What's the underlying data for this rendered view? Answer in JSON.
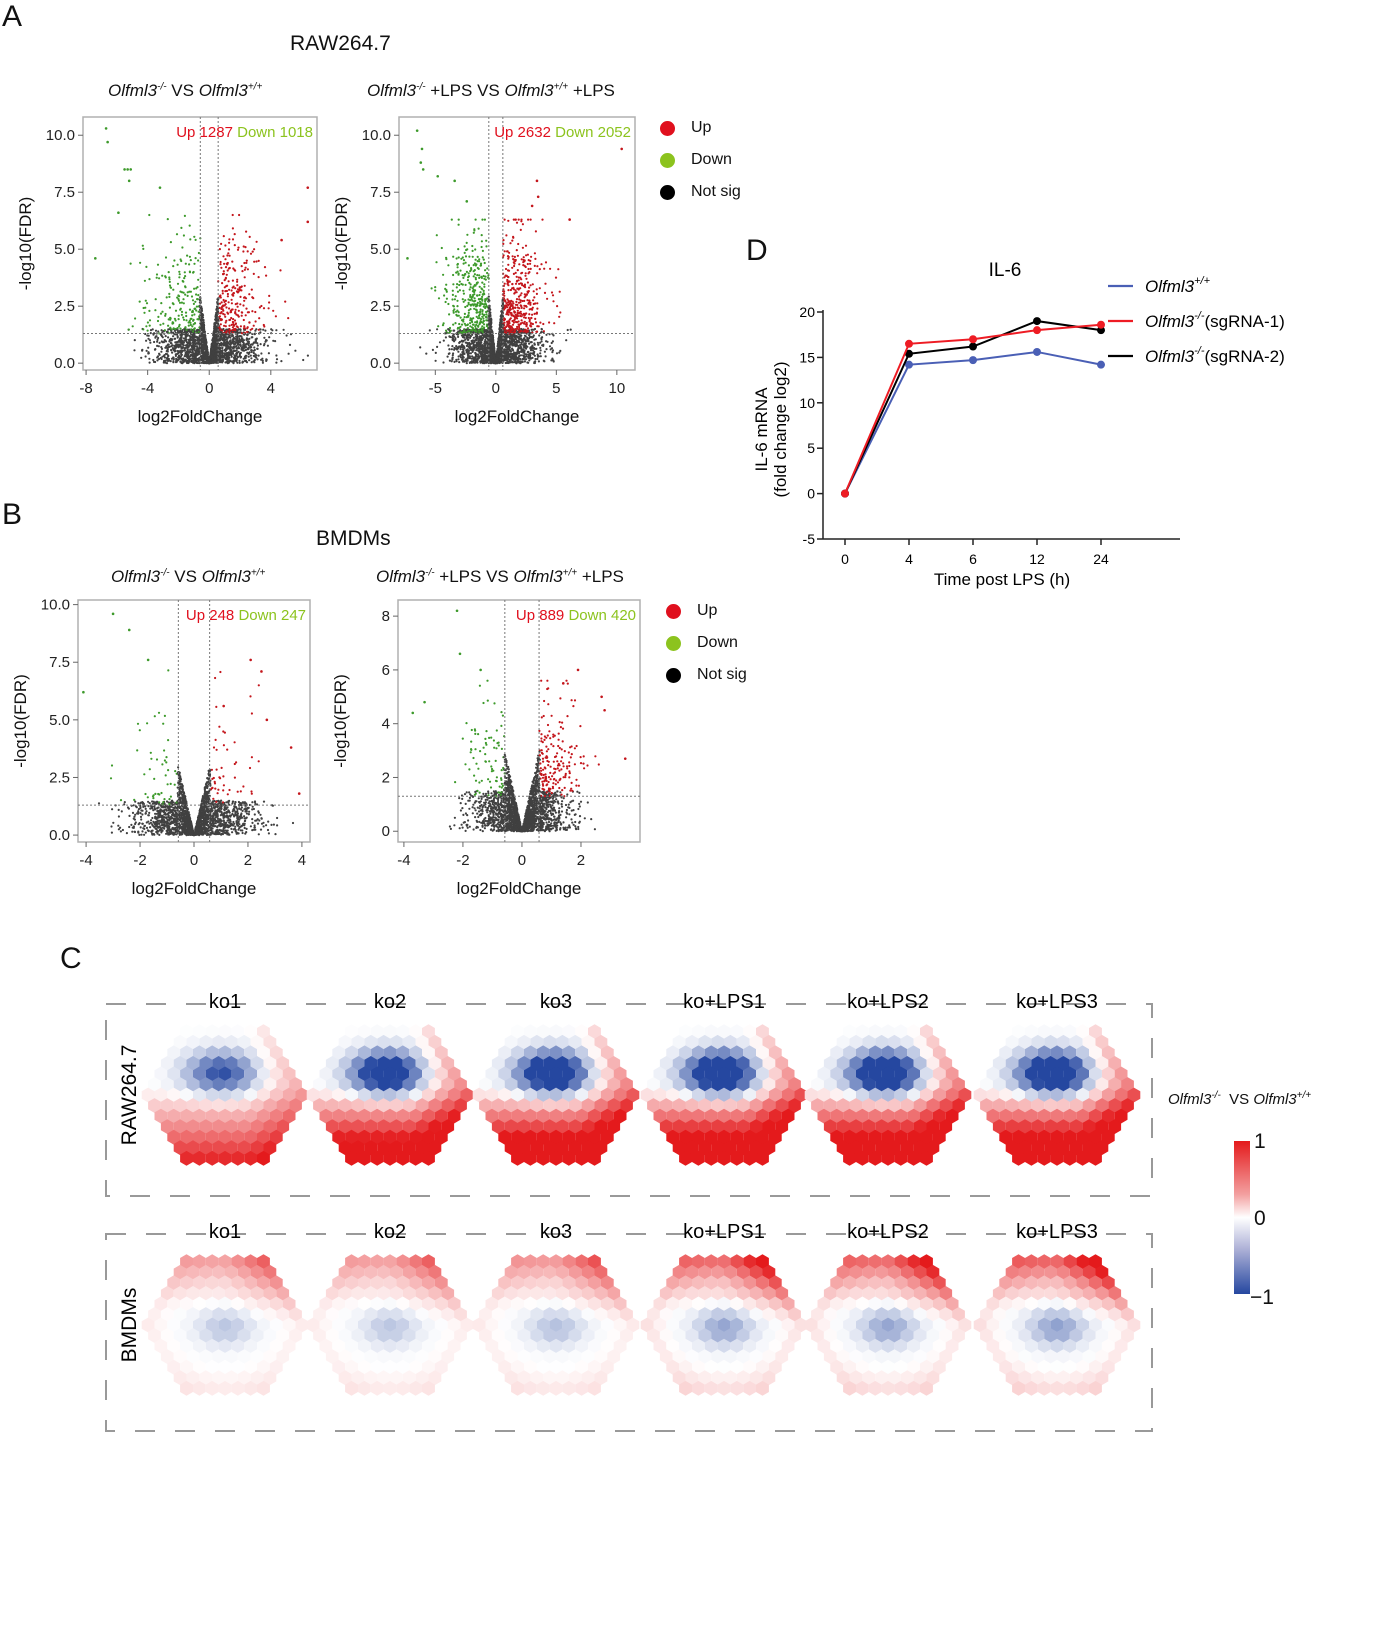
{
  "panels": {
    "A": {
      "letter": "A",
      "section_title": "RAW264.7"
    },
    "B": {
      "letter": "B",
      "section_title": "BMDMs"
    },
    "C": {
      "letter": "C"
    },
    "D": {
      "letter": "D"
    }
  },
  "volcano_legend": {
    "items": [
      {
        "label": "Up",
        "color": "#e0101e"
      },
      {
        "label": "Down",
        "color": "#8cc31e"
      },
      {
        "label": "Not sig",
        "color": "#000000"
      }
    ]
  },
  "chart_data": [
    {
      "id": "A-left",
      "type": "scatter",
      "subtype": "volcano",
      "title_parts": {
        "gene1": "Olfml3",
        "sup1": "-/-",
        "mid": " VS ",
        "gene2": "Olfml3",
        "sup2": "+/+",
        "suffix": ""
      },
      "annotation_up": "Up 1287",
      "annotation_down": "Down 1018",
      "up_count": 1287,
      "down_count": 1018,
      "xlabel": "log2FoldChange",
      "ylabel": "-log10(FDR)",
      "xlim": [
        -8.2,
        7
      ],
      "ylim": [
        -0.3,
        10.8
      ],
      "xticks": [
        -8,
        -4,
        0,
        4
      ],
      "xtick_labels": [
        "-8",
        "-4",
        "0",
        "4"
      ],
      "yticks": [
        0,
        2.5,
        5,
        7.5,
        10
      ],
      "ytick_labels": [
        "0.0",
        "2.5",
        "5.0",
        "7.5",
        "10.0"
      ],
      "fc_threshold": 0.58,
      "fdr_threshold": 1.3,
      "spread": {
        "left": 5.5,
        "right": 4.8,
        "ymax_sig": 6.5
      },
      "outliers": [
        [
          -6.7,
          10.3
        ],
        [
          -6.6,
          9.7
        ],
        [
          -5.5,
          8.5
        ],
        [
          -5.3,
          8.5
        ],
        [
          -5.1,
          8.5
        ],
        [
          -5.2,
          8.0
        ],
        [
          -3.2,
          7.7
        ],
        [
          -7.4,
          4.6
        ],
        [
          -5.9,
          6.6
        ],
        [
          6.4,
          7.7
        ],
        [
          6.4,
          6.2
        ],
        [
          4.7,
          5.4
        ]
      ],
      "seed": 11
    },
    {
      "id": "A-right",
      "type": "scatter",
      "subtype": "volcano",
      "title_parts": {
        "gene1": "Olfml3",
        "sup1": "-/-",
        "mid": " +LPS VS ",
        "gene2": "Olfml3",
        "sup2": "+/+",
        "suffix": " +LPS"
      },
      "annotation_up": "Up 2632",
      "annotation_down": "Down 2052",
      "up_count": 2632,
      "down_count": 2052,
      "xlabel": "log2FoldChange",
      "ylabel": "-log10(FDR)",
      "xlim": [
        -8,
        11.5
      ],
      "ylim": [
        -0.3,
        10.8
      ],
      "xticks": [
        -5,
        0,
        5,
        10
      ],
      "xtick_labels": [
        "-5",
        "0",
        "5",
        "10"
      ],
      "yticks": [
        0,
        2.5,
        5,
        7.5,
        10
      ],
      "ytick_labels": [
        "0.0",
        "2.5",
        "5.0",
        "7.5",
        "10.0"
      ],
      "fc_threshold": 0.58,
      "fdr_threshold": 1.3,
      "spread": {
        "left": 5.5,
        "right": 5.5,
        "ymax_sig": 6.3
      },
      "outliers": [
        [
          -6.5,
          10.2
        ],
        [
          -6.1,
          9.4
        ],
        [
          -6.2,
          8.8
        ],
        [
          -6.0,
          8.5
        ],
        [
          -4.8,
          8.2
        ],
        [
          -3.4,
          8.0
        ],
        [
          -2.4,
          7.1
        ],
        [
          -7.3,
          4.6
        ],
        [
          10.4,
          9.4
        ],
        [
          3.4,
          8.0
        ],
        [
          3.5,
          7.3
        ],
        [
          6.1,
          6.3
        ],
        [
          3.0,
          6.9
        ]
      ],
      "seed": 23
    },
    {
      "id": "B-left",
      "type": "scatter",
      "subtype": "volcano",
      "title_parts": {
        "gene1": "Olfml3",
        "sup1": "-/-",
        "mid": " VS ",
        "gene2": "Olfml3",
        "sup2": "+/+",
        "suffix": ""
      },
      "annotation_up": "Up 248",
      "annotation_down": "Down 247",
      "up_count": 248,
      "down_count": 247,
      "xlabel": "log2FoldChange",
      "ylabel": "-log10(FDR)",
      "xlim": [
        -4.3,
        4.3
      ],
      "ylim": [
        -0.3,
        10.2
      ],
      "xticks": [
        -4,
        -2,
        0,
        2,
        4
      ],
      "xtick_labels": [
        "-4",
        "-2",
        "0",
        "2",
        "4"
      ],
      "yticks": [
        0,
        2.5,
        5,
        7.5,
        10
      ],
      "ytick_labels": [
        "0.0",
        "2.5",
        "5.0",
        "7.5",
        "10.0"
      ],
      "fc_threshold": 0.58,
      "fdr_threshold": 1.3,
      "spread": {
        "left": 3.5,
        "right": 3.0,
        "ymax_sig": 7.3
      },
      "outliers": [
        [
          -3.0,
          9.6
        ],
        [
          -2.4,
          8.9
        ],
        [
          -1.7,
          7.6
        ],
        [
          -4.1,
          6.2
        ],
        [
          2.1,
          7.6
        ],
        [
          2.5,
          7.1
        ],
        [
          2.7,
          5.0
        ],
        [
          3.6,
          3.8
        ],
        [
          3.9,
          1.8
        ],
        [
          1.1,
          5.6
        ]
      ],
      "seed": 37
    },
    {
      "id": "B-right",
      "type": "scatter",
      "subtype": "volcano",
      "title_parts": {
        "gene1": "Olfml3",
        "sup1": "-/-",
        "mid": " +LPS VS ",
        "gene2": "Olfml3",
        "sup2": "+/+",
        "suffix": " +LPS"
      },
      "annotation_up": "Up 889",
      "annotation_down": "Down 420",
      "up_count": 889,
      "down_count": 420,
      "xlabel": "log2FoldChange",
      "ylabel": "-log10(FDR)",
      "xlim": [
        -4.2,
        4.0
      ],
      "ylim": [
        -0.4,
        8.6
      ],
      "xticks": [
        -4,
        -2,
        0,
        2
      ],
      "xtick_labels": [
        "-4",
        "-2",
        "0",
        "2"
      ],
      "yticks": [
        0,
        2,
        4,
        6,
        8
      ],
      "ytick_labels": [
        "0",
        "2",
        "4",
        "6",
        "8"
      ],
      "fc_threshold": 0.58,
      "fdr_threshold": 1.3,
      "spread": {
        "left": 2.5,
        "right": 2.3,
        "ymax_sig": 5.6
      },
      "outliers": [
        [
          -2.2,
          8.2
        ],
        [
          -2.1,
          6.6
        ],
        [
          -1.4,
          6.0
        ],
        [
          -3.3,
          4.8
        ],
        [
          -3.7,
          4.4
        ],
        [
          1.9,
          6.0
        ],
        [
          1.4,
          5.5
        ],
        [
          2.7,
          5.0
        ],
        [
          3.5,
          2.7
        ],
        [
          2.8,
          4.5
        ]
      ],
      "seed": 53
    },
    {
      "id": "D",
      "type": "line",
      "title": "IL-6",
      "xlabel": "Time post LPS (h)",
      "ylabel_line1": "IL-6 mRNA",
      "ylabel_line2": "(fold change log2)",
      "categories": [
        "0",
        "4",
        "6",
        "12",
        "24"
      ],
      "ylim": [
        -5,
        20
      ],
      "yticks": [
        -5,
        0,
        5,
        10,
        15,
        20
      ],
      "series": [
        {
          "name": "Olfml3+/+",
          "legend_gene": "Olfml3",
          "legend_sup": "+/+",
          "legend_suffix": "",
          "color": "#4a5fb5",
          "values": [
            0,
            14.2,
            14.7,
            15.6,
            14.2
          ]
        },
        {
          "name": "Olfml3-/-(sgRNA-1)",
          "legend_gene": "Olfml3",
          "legend_sup": "-/-",
          "legend_suffix": "(sgRNA-1)",
          "color": "#ee1c24",
          "values": [
            0,
            16.5,
            17.0,
            18.0,
            18.6
          ]
        },
        {
          "name": "Olfml3-/-(sgRNA-2)",
          "legend_gene": "Olfml3",
          "legend_sup": "-/-",
          "legend_suffix": "(sgRNA-2)",
          "color": "#000000",
          "values": [
            0,
            15.4,
            16.2,
            19.0,
            18.0
          ]
        }
      ]
    },
    {
      "id": "C",
      "type": "heatmap",
      "subtype": "hexagonal-SOM",
      "rows": [
        {
          "label": "RAW264.7",
          "samples": [
            "ko1",
            "ko2",
            "ko3",
            "ko+LPS1",
            "ko+LPS2",
            "ko+LPS3"
          ],
          "intensity": [
            0.6,
            0.9,
            0.95,
            1.0,
            1.0,
            1.0
          ],
          "pattern": "raw"
        },
        {
          "label": "BMDMs",
          "samples": [
            "ko1",
            "ko2",
            "ko3",
            "ko+LPS1",
            "ko+LPS2",
            "ko+LPS3"
          ],
          "intensity": [
            0.35,
            0.35,
            0.38,
            0.55,
            0.55,
            0.58
          ],
          "pattern": "bmdm"
        }
      ],
      "colorbar": {
        "title_gene1": "Olfml3",
        "title_sup1": "-/-",
        "title_mid": "  VS ",
        "title_gene2": "Olfml3",
        "title_sup2": "+/+",
        "max_label": "1",
        "mid_label": "0",
        "min_label": "−1",
        "range": [
          -1,
          1
        ],
        "high_color": "#e41a1c",
        "mid_color": "#ffffff",
        "low_color": "#2547a0"
      }
    }
  ]
}
